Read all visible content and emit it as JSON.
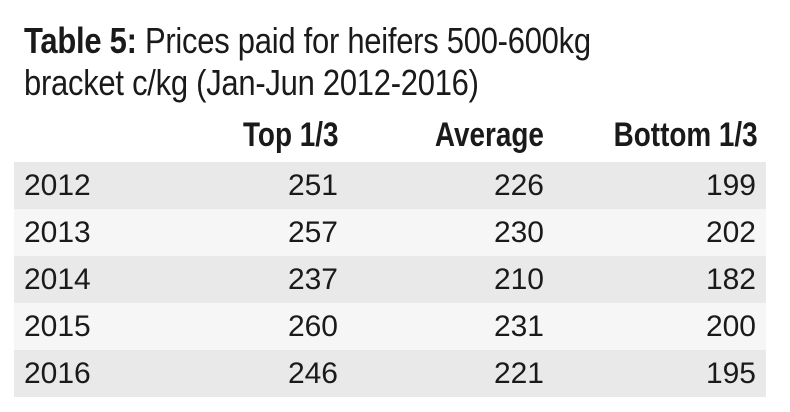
{
  "title": {
    "lead": "Table 5:",
    "text": " Prices paid for heifers 500-600kg bracket c/kg (Jan-Jun 2012-2016)"
  },
  "table": {
    "columns": [
      "",
      "Top 1/3",
      "Average",
      "Bottom 1/3"
    ],
    "rows": [
      {
        "year": "2012",
        "top": "251",
        "average": "226",
        "bottom": "199"
      },
      {
        "year": "2013",
        "top": "257",
        "average": "230",
        "bottom": "202"
      },
      {
        "year": "2014",
        "top": "237",
        "average": "210",
        "bottom": "182"
      },
      {
        "year": "2015",
        "top": "260",
        "average": "231",
        "bottom": "200"
      },
      {
        "year": "2016",
        "top": "246",
        "average": "221",
        "bottom": "195"
      }
    ]
  },
  "colors": {
    "band_dark": "#e9e9e9",
    "band_light": "#f6f6f6",
    "text": "#1a1a1a"
  }
}
